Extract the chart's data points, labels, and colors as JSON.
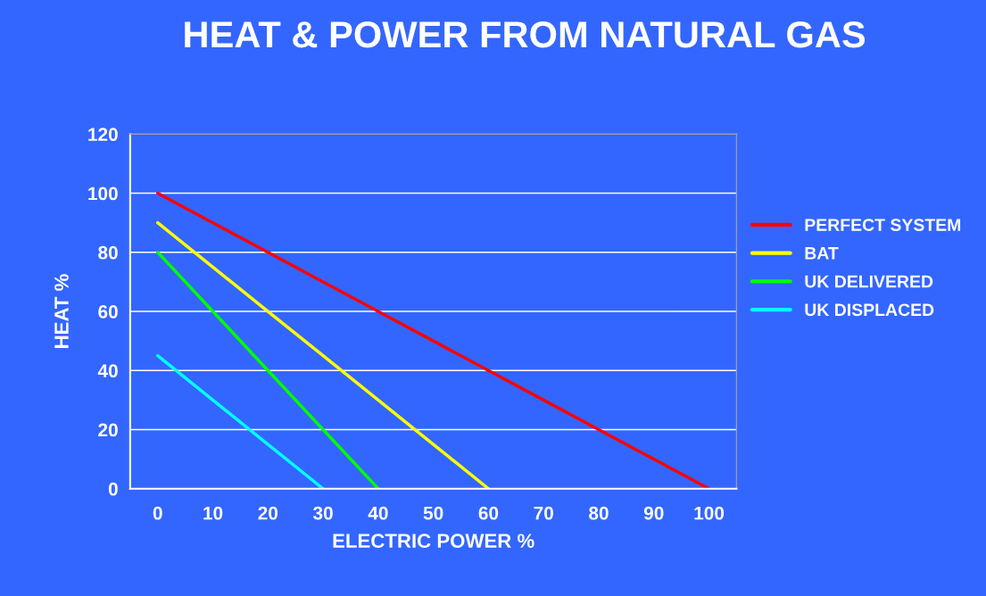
{
  "chart_data": {
    "type": "line",
    "title": "HEAT & POWER FROM NATURAL GAS",
    "xlabel": "ELECTRIC POWER %",
    "ylabel": "HEAT %",
    "categories": [
      "0",
      "10",
      "20",
      "30",
      "40",
      "50",
      "60",
      "70",
      "80",
      "90",
      "100"
    ],
    "series": [
      {
        "name": "PERFECT SYSTEM",
        "color": "#ff0000",
        "values": [
          100,
          90,
          80,
          70,
          60,
          50,
          40,
          30,
          20,
          10,
          0
        ]
      },
      {
        "name": "BAT",
        "color": "#ffff00",
        "values": [
          90,
          75,
          60,
          45,
          30,
          15,
          0,
          null,
          null,
          null,
          null
        ]
      },
      {
        "name": "UK DELIVERED",
        "color": "#00ff00",
        "values": [
          80,
          60,
          40,
          20,
          0,
          null,
          null,
          null,
          null,
          null,
          null
        ]
      },
      {
        "name": "UK DISPLACED",
        "color": "#00ffff",
        "values": [
          45,
          30,
          15,
          0,
          null,
          null,
          null,
          null,
          null,
          null,
          null
        ]
      }
    ],
    "ylim": [
      0,
      120
    ],
    "yticks": [
      0,
      20,
      40,
      60,
      80,
      100,
      120
    ],
    "grid": "y",
    "legend": "right",
    "marker": "none",
    "line_style": "solid"
  }
}
